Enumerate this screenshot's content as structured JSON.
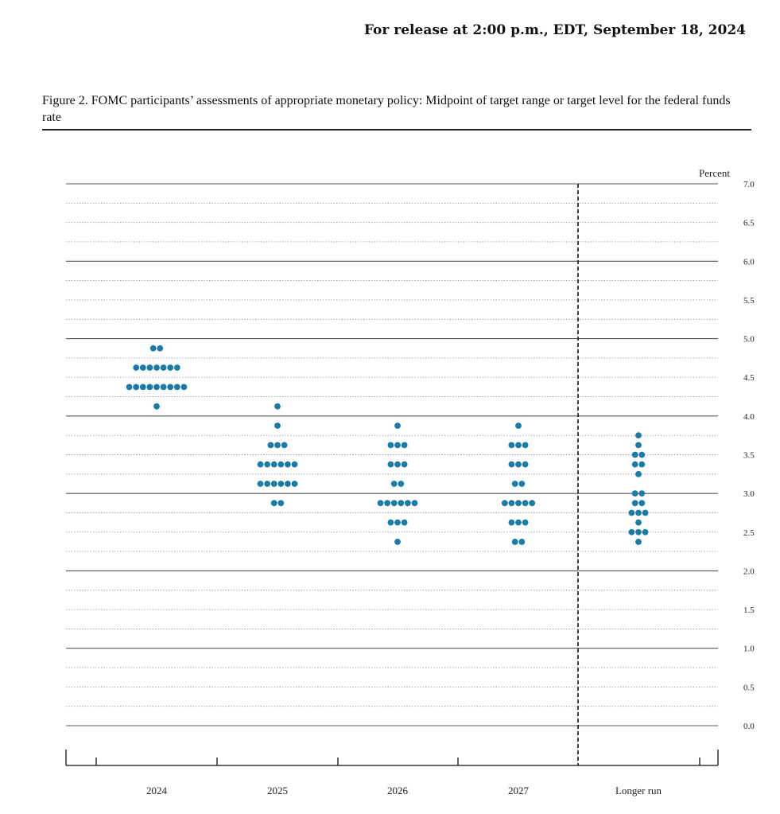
{
  "header": {
    "release": "For release at 2:00 p.m., EDT, September 18, 2024"
  },
  "figure": {
    "title": "Figure 2.  FOMC participants’ assessments of appropriate monetary policy:  Midpoint of target range or target level for the federal funds rate"
  },
  "chart_data": {
    "type": "scatter",
    "subtype": "dot-plot",
    "title": "",
    "xlabel": "",
    "ylabel": "Percent",
    "categories": [
      "2024",
      "2025",
      "2026",
      "2027",
      "Longer run"
    ],
    "ylim": [
      0,
      7
    ],
    "yticks": [
      "0.0",
      "0.5",
      "1.0",
      "1.5",
      "2.0",
      "2.5",
      "3.0",
      "3.5",
      "4.0",
      "4.5",
      "5.0",
      "5.5",
      "6.0",
      "6.5",
      "7.0"
    ],
    "grid": "dotted at every 0.25, solid at whole percents",
    "separator_before": "Longer run",
    "dot_color": "#1a7ba8",
    "columns": [
      {
        "category": "2024",
        "points": [
          [
            4.875,
            2
          ],
          [
            4.625,
            7
          ],
          [
            4.375,
            9
          ],
          [
            4.125,
            1
          ]
        ]
      },
      {
        "category": "2025",
        "points": [
          [
            4.125,
            1
          ],
          [
            3.875,
            1
          ],
          [
            3.625,
            3
          ],
          [
            3.375,
            6
          ],
          [
            3.125,
            6
          ],
          [
            2.875,
            2
          ]
        ]
      },
      {
        "category": "2026",
        "points": [
          [
            3.875,
            1
          ],
          [
            3.625,
            3
          ],
          [
            3.375,
            3
          ],
          [
            3.125,
            2
          ],
          [
            2.875,
            6
          ],
          [
            2.625,
            3
          ],
          [
            2.375,
            1
          ]
        ]
      },
      {
        "category": "2027",
        "points": [
          [
            3.875,
            1
          ],
          [
            3.625,
            3
          ],
          [
            3.375,
            3
          ],
          [
            3.125,
            2
          ],
          [
            2.875,
            5
          ],
          [
            2.625,
            3
          ],
          [
            2.375,
            2
          ]
        ]
      },
      {
        "category": "Longer run",
        "points": [
          [
            3.75,
            1
          ],
          [
            3.625,
            1
          ],
          [
            3.5,
            2
          ],
          [
            3.375,
            2
          ],
          [
            3.25,
            1
          ],
          [
            3.0,
            2
          ],
          [
            2.875,
            2
          ],
          [
            2.75,
            3
          ],
          [
            2.625,
            1
          ],
          [
            2.5,
            3
          ],
          [
            2.375,
            1
          ]
        ]
      }
    ]
  }
}
